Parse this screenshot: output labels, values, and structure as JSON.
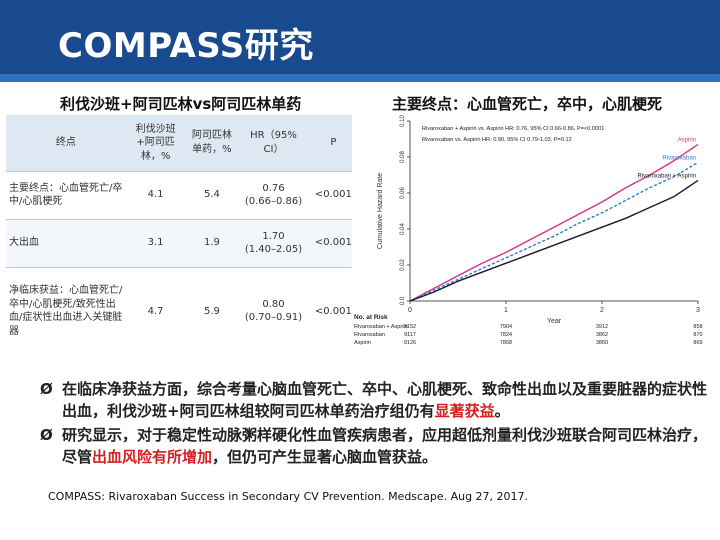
{
  "slide": {
    "title": "COMPASS研究",
    "left_heading": "利伐沙班+阿司匹林vs阿司匹林单药",
    "right_heading": "主要终点：心血管死亡，卒中，心肌梗死"
  },
  "table": {
    "headers": [
      "终点",
      "利伐沙班+阿司匹林，%",
      "阿司匹林单药，%",
      "HR（95% CI）",
      "P"
    ],
    "rows": [
      {
        "endpoint": "主要终点：心血管死亡/卒中/心肌梗死",
        "riva": "4.1",
        "asp": "5.4",
        "hr": "0.76",
        "ci": "(0.66–0.86)",
        "p": "<0.001"
      },
      {
        "endpoint": "大出血",
        "riva": "3.1",
        "asp": "1.9",
        "hr": "1.70",
        "ci": "(1.40–2.05)",
        "p": "<0.001"
      },
      {
        "endpoint": "净临床获益：心血管死亡/卒中/心肌梗死/致死性出血/症状性出血进入关键脏器",
        "riva": "4.7",
        "asp": "5.9",
        "hr": "0.80",
        "ci": "(0.70–0.91)",
        "p": "<0.001"
      }
    ]
  },
  "chart_data": {
    "type": "line",
    "ylabel": "Cumulative Hazard Rate",
    "xlabel": "Year",
    "xlim": [
      0,
      3
    ],
    "ylim": [
      0,
      0.1
    ],
    "x_ticks": [
      "0",
      "1",
      "2",
      "3"
    ],
    "y_ticks": [
      "0.0",
      "0.02",
      "0.04",
      "0.06",
      "0.08",
      "0.10"
    ],
    "annotations": [
      "Rivaroxaban + Aspirin vs. Aspirin    HR: 0.76, 95% CI 0.66-0.86, P=<0.0001",
      "Rivaroxaban vs. Aspirin    HR: 0.90, 95% CI 0.79-1.03, P=0.12"
    ],
    "series": [
      {
        "name": "Aspirin",
        "color": "#d63384",
        "x": [
          0,
          0.25,
          0.5,
          0.75,
          1.0,
          1.25,
          1.5,
          1.75,
          2.0,
          2.25,
          2.5,
          2.75,
          3.0
        ],
        "y": [
          0,
          0.007,
          0.014,
          0.021,
          0.027,
          0.034,
          0.041,
          0.048,
          0.055,
          0.063,
          0.07,
          0.078,
          0.087
        ]
      },
      {
        "name": "Rivaroxaban",
        "color": "#2b7bd0",
        "x": [
          0,
          0.25,
          0.5,
          0.75,
          1.0,
          1.25,
          1.5,
          1.75,
          2.0,
          2.25,
          2.5,
          2.75,
          3.0
        ],
        "y": [
          0,
          0.006,
          0.012,
          0.018,
          0.024,
          0.03,
          0.036,
          0.043,
          0.049,
          0.056,
          0.063,
          0.069,
          0.077
        ]
      },
      {
        "name": "Rivaroxaban + Aspirin",
        "color": "#1a1a2e",
        "x": [
          0,
          0.25,
          0.5,
          0.75,
          1.0,
          1.25,
          1.5,
          1.75,
          2.0,
          2.25,
          2.5,
          2.75,
          3.0
        ],
        "y": [
          0,
          0.005,
          0.011,
          0.016,
          0.021,
          0.026,
          0.031,
          0.036,
          0.041,
          0.046,
          0.052,
          0.058,
          0.067
        ]
      }
    ],
    "risk_table": {
      "title": "No. at Risk",
      "rows": [
        {
          "label": "Rivaroxaban + Aspirin",
          "values": [
            "9152",
            "7904",
            "3912",
            "858"
          ]
        },
        {
          "label": "Rivaroxaban",
          "values": [
            "9117",
            "7824",
            "3862",
            "870"
          ]
        },
        {
          "label": "Aspirin",
          "values": [
            "9126",
            "7868",
            "3860",
            "869"
          ]
        }
      ]
    }
  },
  "bullets": [
    {
      "arrow": "Ø",
      "text_a": "在临床净获益方面，综合考量心脑血管死亡、卒中、心肌梗死、致命性出血以及重要脏器的症状性出血，利伐沙班+阿司匹林组较阿司匹林单药治疗组仍有",
      "red": "显著获益",
      "text_b": "。"
    },
    {
      "arrow": "Ø",
      "text_a": "研究显示，对于稳定性动脉粥样硬化性血管疾病患者，应用超低剂量利伐沙班联合阿司匹林治疗，尽管",
      "red": "出血风险有所增加",
      "text_b": "，但仍可产生显著心脑血管获益。"
    }
  ],
  "reference": "COMPASS: Rivaroxaban Success in Secondary CV Prevention. Medscape. Aug 27, 2017."
}
